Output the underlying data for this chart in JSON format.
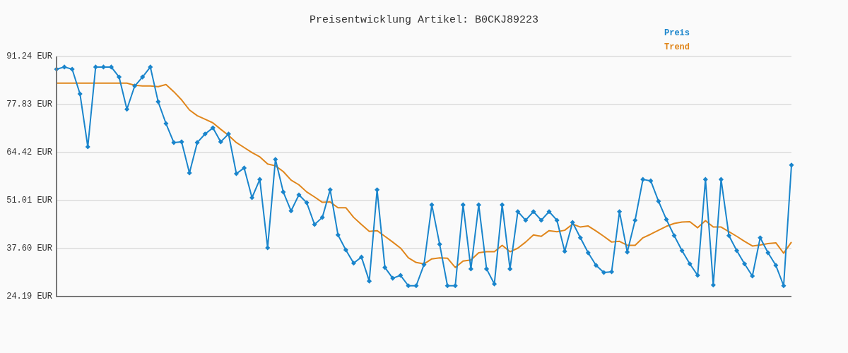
{
  "chart_data": {
    "type": "line",
    "title": "Preisentwicklung Artikel: B0CKJ89223",
    "categories": [
      null,
      null,
      null,
      null,
      null,
      null,
      null,
      null,
      null,
      null,
      null,
      null,
      null,
      null,
      null,
      null,
      null,
      null,
      null,
      null,
      null,
      null,
      null,
      null,
      null,
      null,
      null,
      null,
      null,
      null,
      null,
      null,
      null,
      null,
      null,
      null,
      null,
      null,
      null,
      null,
      null,
      null,
      null,
      null,
      null,
      null,
      null,
      null,
      null,
      null,
      null,
      null,
      null,
      null,
      null,
      null,
      null,
      null,
      null,
      null,
      null,
      null,
      null,
      null,
      null,
      null,
      null,
      null,
      null,
      null,
      null,
      null,
      null,
      null,
      null,
      null,
      null,
      null,
      null,
      null,
      null,
      null,
      null,
      null,
      null,
      null,
      null,
      null,
      null,
      null,
      null,
      null,
      null,
      null,
      null
    ],
    "series": [
      {
        "name": "Preis",
        "color": "#1a85cc",
        "marker": "diamond",
        "values": [
          87.7,
          88.3,
          87.7,
          80.8,
          66.0,
          88.3,
          88.3,
          88.3,
          85.5,
          76.5,
          83.0,
          85.5,
          88.3,
          78.6,
          72.5,
          67.2,
          67.4,
          58.7,
          67.2,
          69.6,
          71.3,
          67.4,
          69.6,
          58.5,
          60.1,
          51.8,
          56.9,
          37.8,
          62.5,
          53.4,
          48.1,
          52.6,
          50.4,
          44.3,
          46.3,
          54.0,
          41.4,
          37.2,
          33.5,
          35.2,
          28.5,
          54.0,
          32.3,
          29.3,
          30.1,
          27.2,
          27.2,
          33.1,
          49.8,
          38.8,
          27.2,
          27.2,
          49.8,
          31.9,
          49.8,
          31.9,
          27.7,
          49.8,
          31.9,
          47.9,
          45.5,
          47.9,
          45.5,
          47.9,
          45.5,
          36.8,
          44.9,
          40.6,
          36.4,
          32.9,
          30.9,
          31.1,
          47.9,
          36.6,
          45.5,
          56.9,
          56.5,
          50.8,
          45.7,
          41.2,
          37.0,
          33.3,
          30.1,
          56.9,
          27.4,
          56.9,
          41.2,
          37.0,
          33.3,
          29.9,
          40.6,
          36.4,
          32.9,
          27.2,
          60.9
        ]
      },
      {
        "name": "Trend",
        "color": "#e0861c",
        "marker": "none",
        "values": [
          83.8,
          83.8,
          83.8,
          83.8,
          83.8,
          83.8,
          83.8,
          83.8,
          83.8,
          83.8,
          83.2,
          83.0,
          83.0,
          82.8,
          83.4,
          81.4,
          79.1,
          76.3,
          74.7,
          73.7,
          72.7,
          70.9,
          69.2,
          67.2,
          65.8,
          64.4,
          63.2,
          61.2,
          60.7,
          59.1,
          56.7,
          55.4,
          53.4,
          52.0,
          50.5,
          50.6,
          49.0,
          49.0,
          46.3,
          44.3,
          42.4,
          42.6,
          41.0,
          39.4,
          37.7,
          35.0,
          33.7,
          33.3,
          34.7,
          35.0,
          34.9,
          32.3,
          34.1,
          34.4,
          36.4,
          36.7,
          36.7,
          38.5,
          36.7,
          37.7,
          39.4,
          41.4,
          41.0,
          42.6,
          42.3,
          42.7,
          44.4,
          43.6,
          43.9,
          42.5,
          41.0,
          39.4,
          39.6,
          38.5,
          38.5,
          40.6,
          41.6,
          42.7,
          43.8,
          44.6,
          45.0,
          45.1,
          43.4,
          45.4,
          43.6,
          43.6,
          42.3,
          41.0,
          39.6,
          38.3,
          38.6,
          39.0,
          39.2,
          36.3,
          39.4
        ]
      }
    ],
    "ylim": [
      24.19,
      91.24
    ],
    "yticks": [
      {
        "value": 24.19,
        "label": "24.19 EUR"
      },
      {
        "value": 37.6,
        "label": "37.60 EUR"
      },
      {
        "value": 51.01,
        "label": "51.01 EUR"
      },
      {
        "value": 64.42,
        "label": "64.42 EUR"
      },
      {
        "value": 77.83,
        "label": "77.83 EUR"
      },
      {
        "value": 91.24,
        "label": "91.24 EUR"
      }
    ],
    "grid": "y",
    "legend": "top right",
    "tick_labels": "y"
  }
}
